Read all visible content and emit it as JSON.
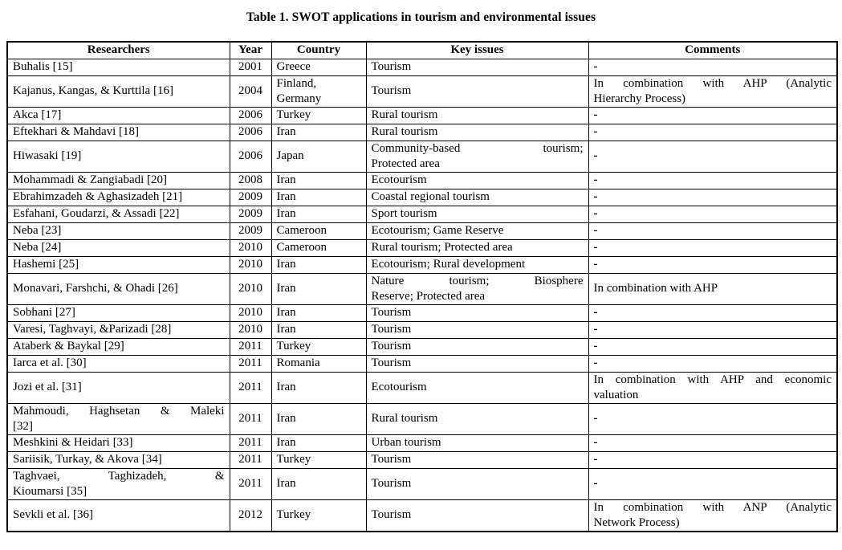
{
  "page": {
    "title": "Table 1. SWOT applications in tourism and environmental issues"
  },
  "table": {
    "headers": [
      "Researchers",
      "Year",
      "Country",
      "Key issues",
      "Comments"
    ],
    "column_keys": [
      "researchers",
      "year",
      "country",
      "key_issues",
      "comments"
    ],
    "rows": [
      {
        "researchers": "Buhalis [15]",
        "year": "2001",
        "country": "Greece",
        "key_issues": "Tourism",
        "comments": "-"
      },
      {
        "researchers": "Kajanus, Kangas, & Kurttila [16]",
        "year": "2004",
        "country": "Finland, Germany",
        "key_issues": "Tourism",
        "comments": [
          "In combination with AHP (Analytic",
          "Hierarchy Process)"
        ]
      },
      {
        "researchers": "Akca [17]",
        "year": "2006",
        "country": "Turkey",
        "key_issues": "Rural tourism",
        "comments": "-"
      },
      {
        "researchers": "Eftekhari & Mahdavi [18]",
        "year": "2006",
        "country": "Iran",
        "key_issues": "Rural tourism",
        "comments": "-"
      },
      {
        "researchers": "Hiwasaki [19]",
        "year": "2006",
        "country": "Japan",
        "key_issues": [
          "Community-based tourism;",
          "Protected area"
        ],
        "comments": "-"
      },
      {
        "researchers": "Mohammadi & Zangiabadi [20]",
        "year": "2008",
        "country": "Iran",
        "key_issues": "Ecotourism",
        "comments": "-"
      },
      {
        "researchers": "Ebrahimzadeh & Aghasizadeh [21]",
        "year": "2009",
        "country": "Iran",
        "key_issues": "Coastal regional tourism",
        "comments": "-"
      },
      {
        "researchers": "Esfahani, Goudarzi, & Assadi [22]",
        "year": "2009",
        "country": "Iran",
        "key_issues": "Sport tourism",
        "comments": "-"
      },
      {
        "researchers": "Neba [23]",
        "year": "2009",
        "country": "Cameroon",
        "key_issues": "Ecotourism; Game Reserve",
        "comments": "-"
      },
      {
        "researchers": "Neba [24]",
        "year": "2010",
        "country": "Cameroon",
        "key_issues": "Rural tourism; Protected area",
        "comments": "-"
      },
      {
        "researchers": "Hashemi [25]",
        "year": "2010",
        "country": "Iran",
        "key_issues": "Ecotourism; Rural development",
        "comments": "-"
      },
      {
        "researchers": "Monavari, Farshchi, & Ohadi [26]",
        "year": "2010",
        "country": "Iran",
        "key_issues": [
          "Nature tourism; Biosphere",
          "Reserve; Protected area"
        ],
        "comments": "In combination with AHP"
      },
      {
        "researchers": "Sobhani [27]",
        "year": "2010",
        "country": "Iran",
        "key_issues": "Tourism",
        "comments": "-"
      },
      {
        "researchers": "Varesi, Taghvayi, &Parizadi [28]",
        "year": "2010",
        "country": "Iran",
        "key_issues": "Tourism",
        "comments": "-"
      },
      {
        "researchers": "Ataberk & Baykal [29]",
        "year": "2011",
        "country": "Turkey",
        "key_issues": "Tourism",
        "comments": "-"
      },
      {
        "researchers": "Iarca et al. [30]",
        "year": "2011",
        "country": "Romania",
        "key_issues": "Tourism",
        "comments": "-"
      },
      {
        "researchers": "Jozi et al. [31]",
        "year": "2011",
        "country": "Iran",
        "key_issues": "Ecotourism",
        "comments": [
          "In combination with AHP and economic",
          "valuation"
        ]
      },
      {
        "researchers": [
          "Mahmoudi, Haghsetan & Maleki",
          "[32]"
        ],
        "year": "2011",
        "country": "Iran",
        "key_issues": "Rural tourism",
        "comments": "-"
      },
      {
        "researchers": "Meshkini & Heidari [33]",
        "year": "2011",
        "country": "Iran",
        "key_issues": "Urban tourism",
        "comments": "-"
      },
      {
        "researchers": "Sariisik, Turkay, & Akova [34]",
        "year": "2011",
        "country": "Turkey",
        "key_issues": "Tourism",
        "comments": "-"
      },
      {
        "researchers": [
          "Taghvaei, Taghizadeh, &",
          "Kioumarsi [35]"
        ],
        "year": "2011",
        "country": "Iran",
        "key_issues": "Tourism",
        "comments": "-"
      },
      {
        "researchers": "Sevkli et al. [36]",
        "year": "2012",
        "country": "Turkey",
        "key_issues": "Tourism",
        "comments": [
          "In combination with ANP (Analytic",
          "Network Process)"
        ]
      }
    ]
  }
}
